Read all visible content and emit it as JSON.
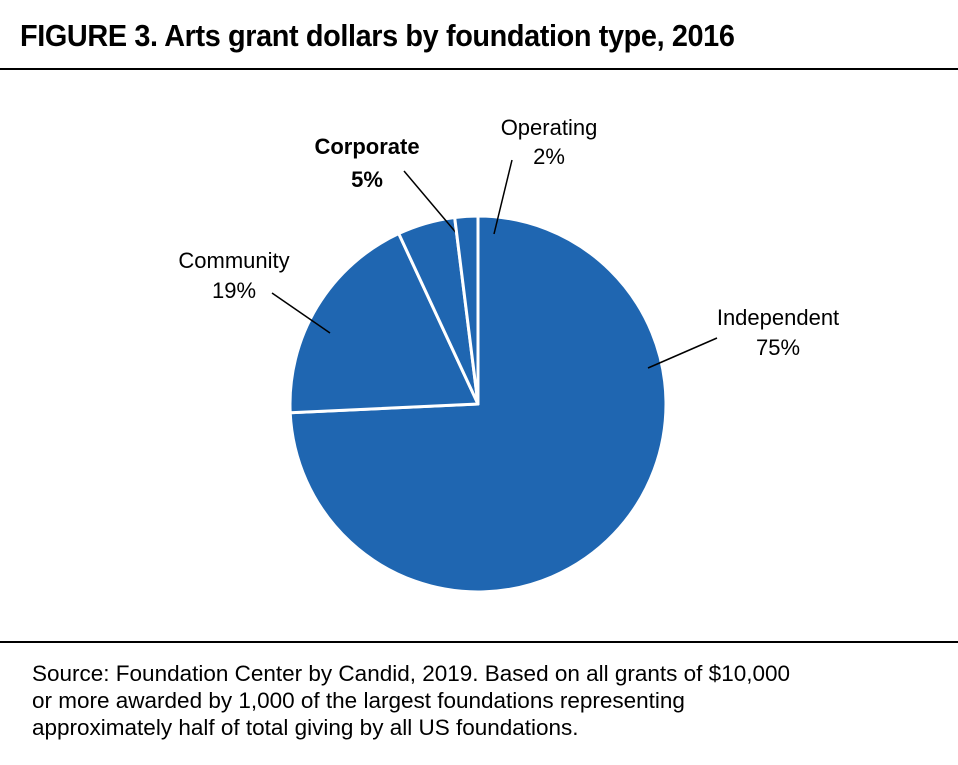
{
  "title": "FIGURE 3. Arts grant dollars by foundation type, 2016",
  "chart_data": {
    "type": "pie",
    "title": "FIGURE 3. Arts grant dollars by foundation type, 2016",
    "start_angle_deg": 0,
    "direction": "clockwise",
    "slices": [
      {
        "name": "Independent",
        "label": "75%",
        "value": 75,
        "color": "#1f66b1",
        "bold": false
      },
      {
        "name": "Community",
        "label": "19%",
        "value": 19,
        "color": "#1f66b1",
        "bold": false
      },
      {
        "name": "Corporate",
        "label": "5%",
        "value": 5,
        "color": "#1f66b1",
        "bold": true
      },
      {
        "name": "Operating",
        "label": "2%",
        "value": 2,
        "color": "#1f66b1",
        "bold": false
      }
    ],
    "slice_separator_color": "#ffffff"
  },
  "source_lines": [
    "Source: Foundation Center by Candid, 2019. Based on all grants of $10,000",
    "or more awarded by 1,000 of the largest foundations representing",
    "approximately half of total giving by all US foundations."
  ]
}
